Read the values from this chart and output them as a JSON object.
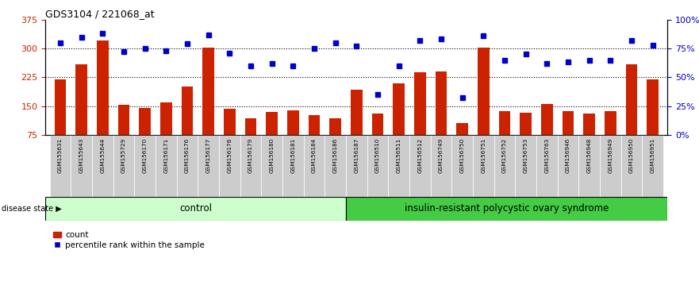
{
  "title": "GDS3104 / 221068_at",
  "categories": [
    "GSM155631",
    "GSM155643",
    "GSM155644",
    "GSM155729",
    "GSM156170",
    "GSM156171",
    "GSM156176",
    "GSM156177",
    "GSM156178",
    "GSM156179",
    "GSM156180",
    "GSM156181",
    "GSM156184",
    "GSM156186",
    "GSM156187",
    "GSM156510",
    "GSM156511",
    "GSM156512",
    "GSM156749",
    "GSM156750",
    "GSM156751",
    "GSM156752",
    "GSM156753",
    "GSM156763",
    "GSM156946",
    "GSM156948",
    "GSM156949",
    "GSM156950",
    "GSM156951"
  ],
  "bar_values": [
    220,
    258,
    320,
    153,
    145,
    160,
    200,
    302,
    143,
    118,
    135,
    138,
    127,
    118,
    193,
    130,
    210,
    238,
    240,
    105,
    302,
    137,
    132,
    155,
    137,
    130,
    137,
    258,
    220
  ],
  "percentile_values": [
    80,
    85,
    88,
    72,
    75,
    73,
    79,
    87,
    71,
    60,
    62,
    60,
    75,
    80,
    77,
    35,
    60,
    82,
    83,
    32,
    86,
    65,
    70,
    62,
    63,
    65,
    65,
    82,
    78
  ],
  "bar_color": "#cc2200",
  "dot_color": "#0000cc",
  "ylim_left": [
    75,
    375
  ],
  "ylim_right": [
    0,
    100
  ],
  "yticks_left": [
    75,
    150,
    225,
    300,
    375
  ],
  "yticks_right": [
    0,
    25,
    50,
    75,
    100
  ],
  "yticklabels_left": [
    "75",
    "150",
    "225",
    "300",
    "375"
  ],
  "yticklabels_right": [
    "0%",
    "25%",
    "50%",
    "75%",
    "100%"
  ],
  "control_count": 14,
  "control_label": "control",
  "disease_label": "insulin-resistant polycystic ovary syndrome",
  "group_label": "disease state",
  "legend_bar_label": "count",
  "legend_dot_label": "percentile rank within the sample",
  "control_color": "#ccffcc",
  "disease_color": "#44cc44",
  "label_bg_color": "#cccccc",
  "spine_color": "#444444"
}
